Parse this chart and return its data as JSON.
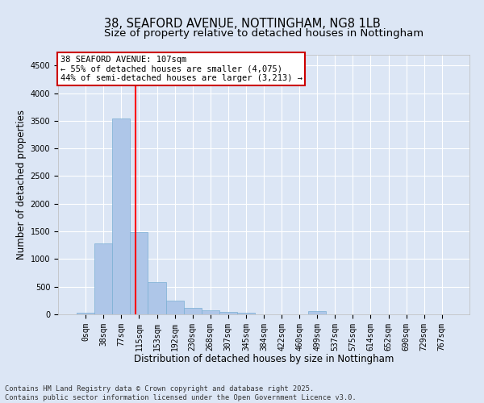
{
  "title": "38, SEAFORD AVENUE, NOTTINGHAM, NG8 1LB",
  "subtitle": "Size of property relative to detached houses in Nottingham",
  "xlabel": "Distribution of detached houses by size in Nottingham",
  "ylabel": "Number of detached properties",
  "bar_color": "#aec6e8",
  "bar_edge_color": "#7aafd4",
  "background_color": "#dce6f5",
  "grid_color": "#ffffff",
  "bin_labels": [
    "0sqm",
    "38sqm",
    "77sqm",
    "115sqm",
    "153sqm",
    "192sqm",
    "230sqm",
    "268sqm",
    "307sqm",
    "345sqm",
    "384sqm",
    "422sqm",
    "460sqm",
    "499sqm",
    "537sqm",
    "575sqm",
    "614sqm",
    "652sqm",
    "690sqm",
    "729sqm",
    "767sqm"
  ],
  "bar_values": [
    30,
    1280,
    3540,
    1490,
    590,
    250,
    120,
    75,
    40,
    25,
    5,
    0,
    0,
    55,
    0,
    0,
    0,
    0,
    0,
    0,
    0
  ],
  "ylim": [
    0,
    4700
  ],
  "yticks": [
    0,
    500,
    1000,
    1500,
    2000,
    2500,
    3000,
    3500,
    4000,
    4500
  ],
  "vline_x": 2.79,
  "annotation_line1": "38 SEAFORD AVENUE: 107sqm",
  "annotation_line2": "← 55% of detached houses are smaller (4,075)",
  "annotation_line3": "44% of semi-detached houses are larger (3,213) →",
  "annotation_box_color": "#ffffff",
  "annotation_border_color": "#cc0000",
  "footnote": "Contains HM Land Registry data © Crown copyright and database right 2025.\nContains public sector information licensed under the Open Government Licence v3.0.",
  "title_fontsize": 10.5,
  "subtitle_fontsize": 9.5,
  "axis_label_fontsize": 8.5,
  "tick_fontsize": 7,
  "annotation_fontsize": 7.5,
  "footnote_fontsize": 6.2
}
